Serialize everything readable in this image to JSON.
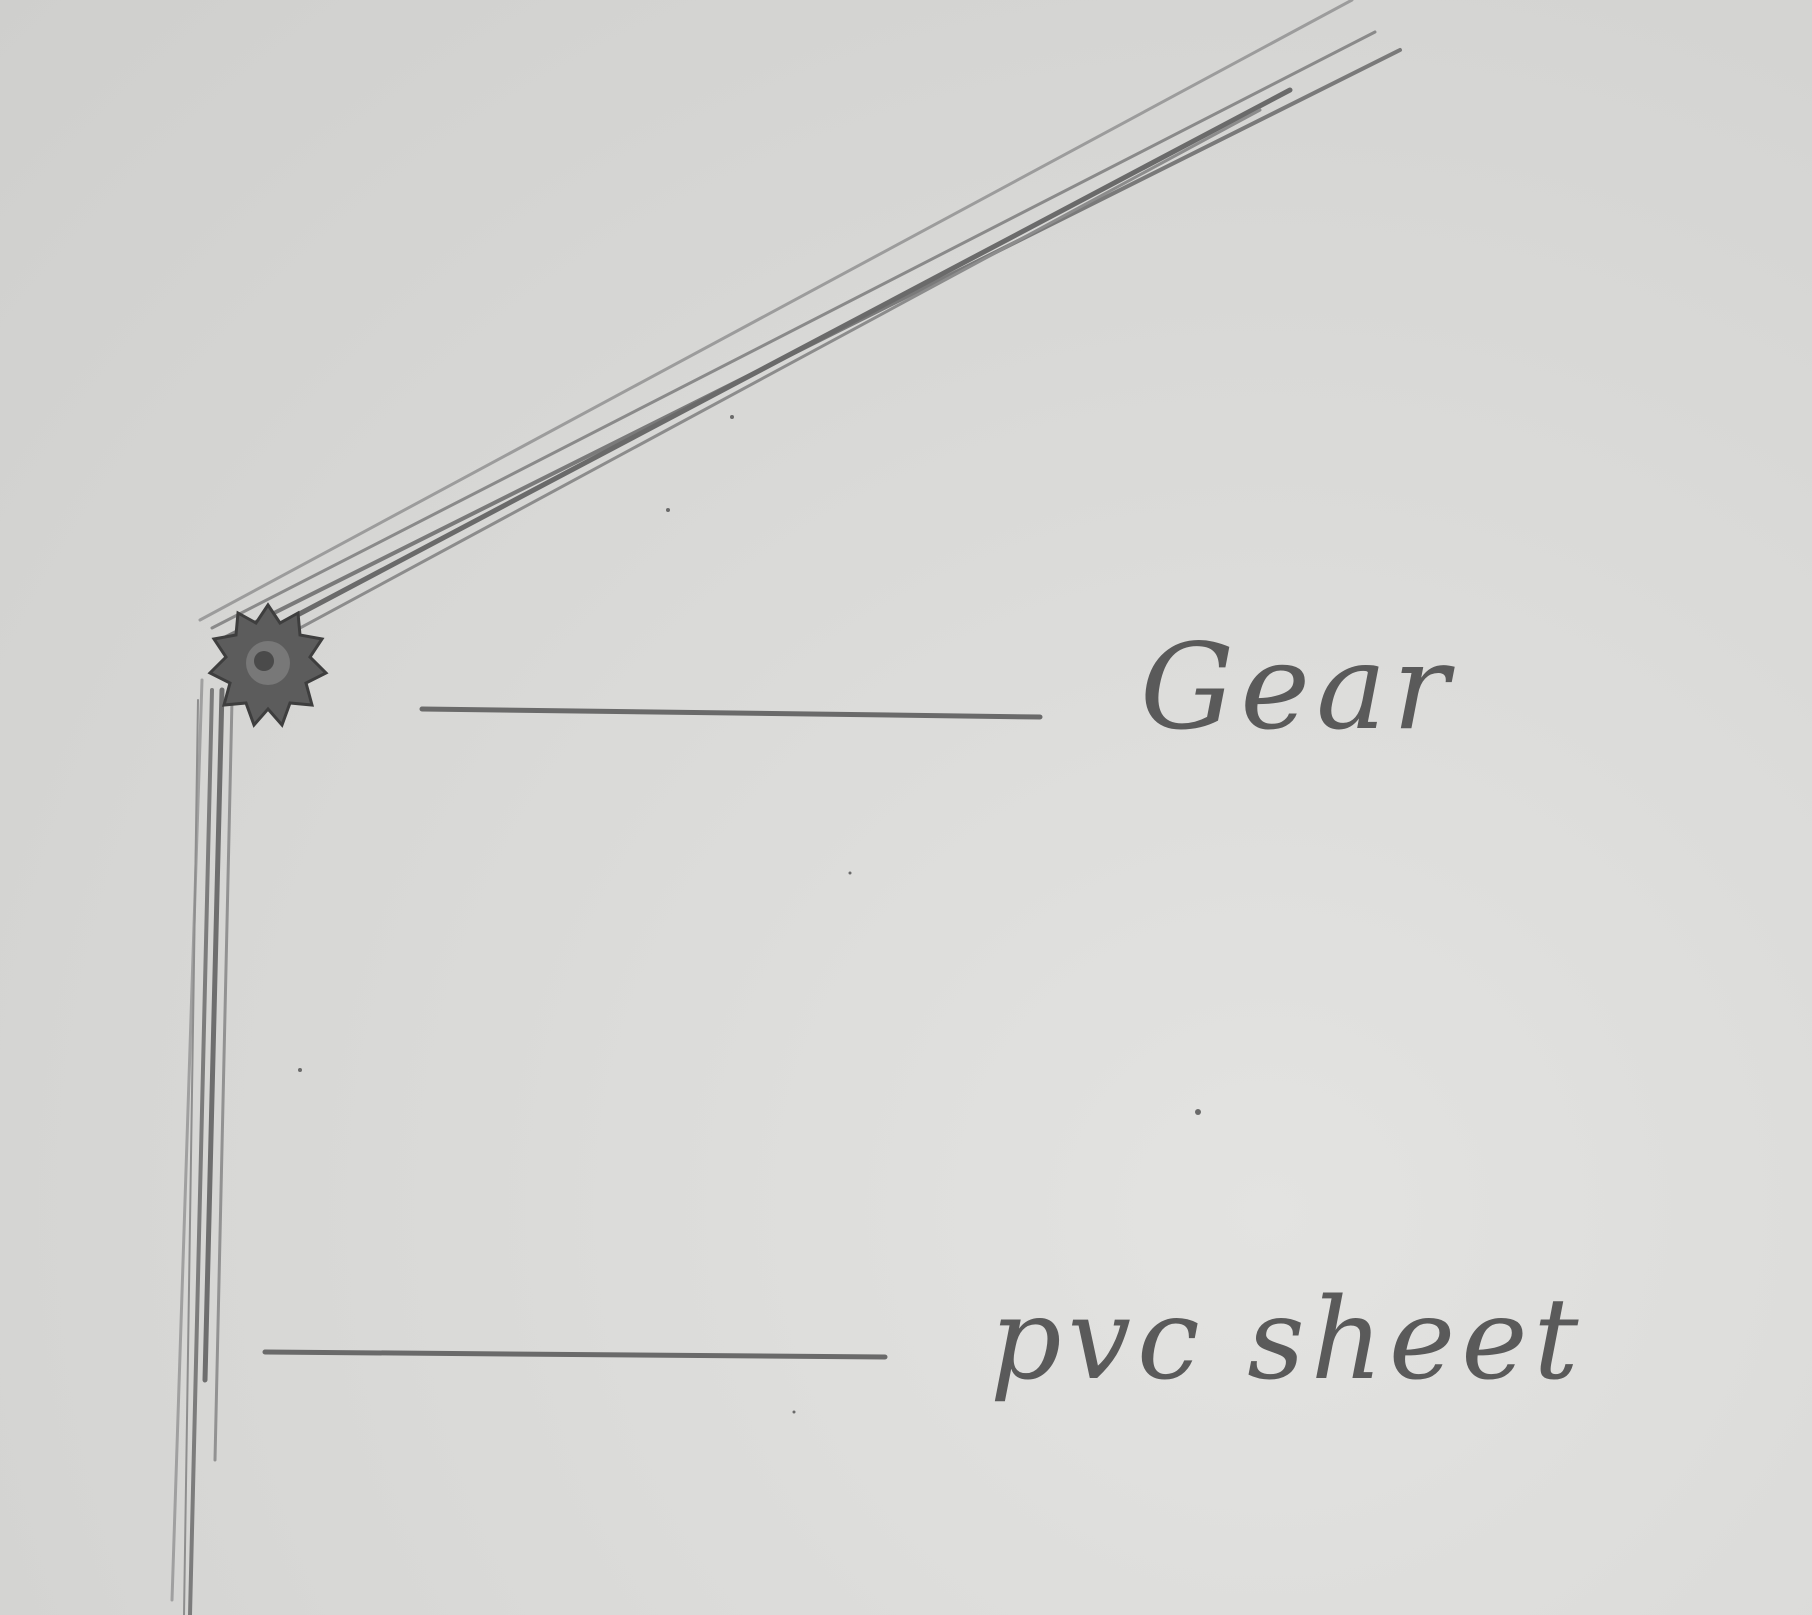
{
  "labels": {
    "gear": "Gear",
    "pvc": "pvc sheet"
  },
  "colors": {
    "paper": "#dadad8",
    "pencil": "#6e6e6e",
    "pencil_light": "#9a9a9a",
    "graphite": "#4a4a4a"
  },
  "icons": {
    "gear": "gear-icon"
  }
}
